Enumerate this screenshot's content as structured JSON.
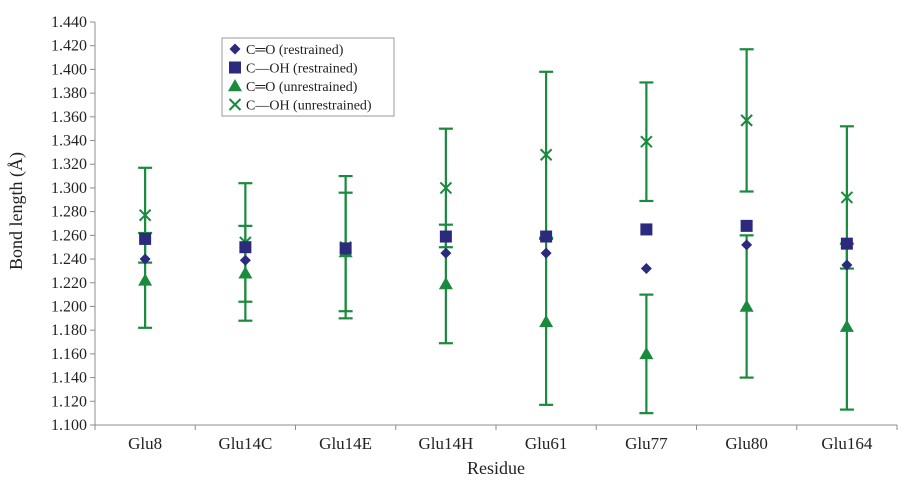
{
  "chart_data": {
    "type": "scatter",
    "xlabel": "Residue",
    "ylabel": "Bond length (Å)",
    "categories": [
      "Glu8",
      "Glu14C",
      "Glu14E",
      "Glu14H",
      "Glu61",
      "Glu77",
      "Glu80",
      "Glu164"
    ],
    "ylim": [
      1.1,
      1.44
    ],
    "ytick_step": 0.02,
    "yticks": [
      "1.100",
      "1.120",
      "1.140",
      "1.160",
      "1.180",
      "1.200",
      "1.220",
      "1.240",
      "1.260",
      "1.280",
      "1.300",
      "1.320",
      "1.340",
      "1.360",
      "1.380",
      "1.400",
      "1.420",
      "1.440"
    ],
    "grid": false,
    "legend_position": "top-left",
    "series": [
      {
        "name": "C═O (restrained)",
        "marker": "diamond",
        "color": "#2b2a7c",
        "values": [
          1.24,
          1.239,
          1.248,
          1.245,
          1.245,
          1.232,
          1.252,
          1.235
        ]
      },
      {
        "name": "C—OH (restrained)",
        "marker": "square",
        "color": "#2b2a7c",
        "values": [
          1.257,
          1.25,
          1.249,
          1.259,
          1.259,
          1.265,
          1.268,
          1.253
        ]
      },
      {
        "name": "C═O (unrestrained)",
        "marker": "triangle",
        "color": "#1a8a3e",
        "values": [
          1.222,
          1.228,
          1.246,
          1.219,
          1.187,
          1.16,
          1.2,
          1.183
        ],
        "error": [
          0.04,
          0.04,
          0.05,
          0.05,
          0.07,
          0.05,
          0.06,
          0.07
        ]
      },
      {
        "name": "C—OH (unrestrained)",
        "marker": "x",
        "color": "#1a8a3e",
        "values": [
          1.277,
          1.254,
          1.25,
          1.3,
          1.328,
          1.339,
          1.357,
          1.292
        ],
        "error": [
          0.04,
          0.05,
          0.06,
          0.05,
          0.07,
          0.05,
          0.06,
          0.06
        ]
      }
    ]
  }
}
